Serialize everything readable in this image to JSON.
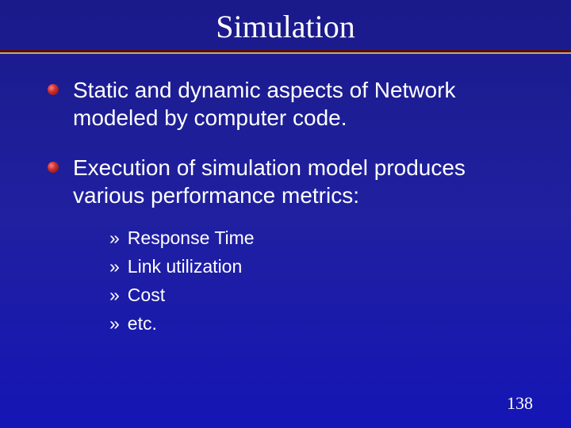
{
  "title": "Simulation",
  "title_fontsize": 40,
  "title_color": "#ffffff",
  "rule_dark_color": "#5a0c0c",
  "rule_light_color": "#c2a97a",
  "bullets": [
    {
      "text": "Static and dynamic aspects of Network modeled by computer code."
    },
    {
      "text": "Execution of simulation model produces various performance metrics:"
    }
  ],
  "bullet_fontsize": 28,
  "bullet_color": "#ffffff",
  "bullet_marker_gradient": [
    "#ff8080",
    "#cc3030",
    "#701010"
  ],
  "sub_bullets": [
    {
      "marker": "»",
      "text": "Response Time"
    },
    {
      "marker": "»",
      "text": "Link utilization"
    },
    {
      "marker": "»",
      "text": "Cost"
    },
    {
      "marker": "»",
      "text": "etc."
    }
  ],
  "sub_fontsize": 23,
  "sub_color": "#ffffff",
  "page_number": "138",
  "page_number_fontsize": 22,
  "page_number_color": "#ffffff",
  "background_gradient": [
    "#1a1a8a",
    "#2020a0",
    "#1515b5"
  ]
}
